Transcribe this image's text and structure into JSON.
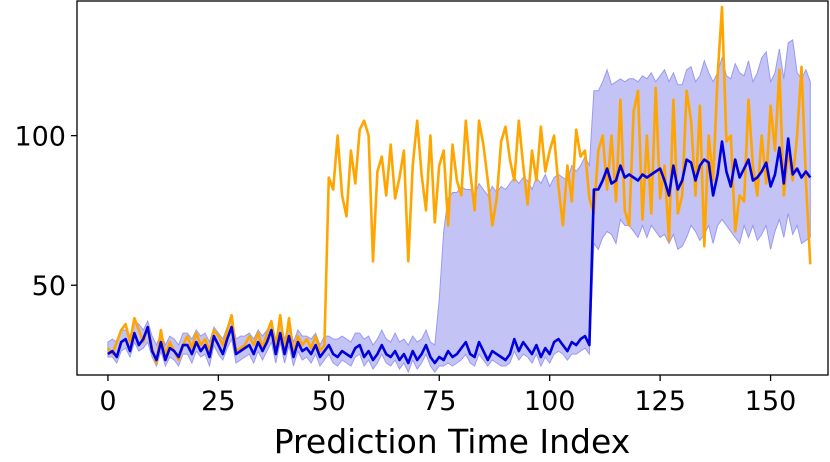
{
  "chart_data": {
    "type": "line",
    "title": "",
    "xlabel": "Prediction Time Index",
    "ylabel": "",
    "xlim": [
      -7,
      163
    ],
    "ylim": [
      20,
      145
    ],
    "xticks": [
      0,
      25,
      50,
      75,
      100,
      125,
      150
    ],
    "yticks": [
      50,
      100
    ],
    "grid": false,
    "legend": "none",
    "colors": {
      "actual": "#ffa500",
      "prediction": "#0000dd",
      "band_fill": "#b8b8f5",
      "band_edge": "#9a9aee"
    },
    "series": [
      {
        "role": "actual",
        "x": [
          0,
          1,
          2,
          3,
          4,
          5,
          6,
          7,
          8,
          9,
          10,
          11,
          12,
          13,
          14,
          15,
          16,
          17,
          18,
          19,
          20,
          21,
          22,
          23,
          24,
          25,
          26,
          27,
          28,
          29,
          30,
          31,
          32,
          33,
          34,
          35,
          36,
          37,
          38,
          39,
          40,
          41,
          42,
          43,
          44,
          45,
          46,
          47,
          48,
          49,
          50,
          51,
          52,
          53,
          54,
          55,
          56,
          57,
          58,
          59,
          60,
          61,
          62,
          63,
          64,
          65,
          66,
          67,
          68,
          69,
          70,
          71,
          72,
          73,
          74,
          75,
          76,
          77,
          78,
          79,
          80,
          81,
          82,
          83,
          84,
          85,
          86,
          87,
          88,
          89,
          90,
          91,
          92,
          93,
          94,
          95,
          96,
          97,
          98,
          99,
          100,
          101,
          102,
          103,
          104,
          105,
          106,
          107,
          108,
          109,
          110,
          111,
          112,
          113,
          114,
          115,
          116,
          117,
          118,
          119,
          120,
          121,
          122,
          123,
          124,
          125,
          126,
          127,
          128,
          129,
          130,
          131,
          132,
          133,
          134,
          135,
          136,
          137,
          138,
          139,
          140,
          141,
          142,
          143,
          144,
          145,
          146,
          147,
          148,
          149,
          150,
          151,
          152,
          153,
          154,
          155,
          156,
          157,
          158,
          159
        ],
        "y": [
          29,
          27,
          31,
          35,
          37,
          31,
          39,
          35,
          31,
          36,
          29,
          24,
          35,
          26,
          31,
          28,
          25,
          30,
          33,
          29,
          34,
          30,
          32,
          28,
          35,
          33,
          30,
          35,
          40,
          28,
          29,
          30,
          33,
          30,
          34,
          29,
          34,
          38,
          29,
          40,
          28,
          39,
          27,
          33,
          30,
          32,
          29,
          33,
          28,
          30,
          86,
          82,
          100,
          80,
          73,
          95,
          84,
          102,
          105,
          100,
          58,
          88,
          93,
          80,
          97,
          79,
          86,
          95,
          58,
          90,
          105,
          87,
          75,
          100,
          71,
          90,
          95,
          70,
          97,
          85,
          80,
          105,
          88,
          75,
          105,
          97,
          85,
          70,
          79,
          98,
          103,
          92,
          85,
          105,
          90,
          77,
          95,
          85,
          103,
          88,
          95,
          100,
          83,
          70,
          90,
          78,
          102,
          93,
          95,
          79,
          74,
          95,
          100,
          82,
          100,
          78,
          112,
          75,
          70,
          108,
          115,
          72,
          100,
          74,
          116,
          79,
          90,
          65,
          112,
          74,
          80,
          115,
          105,
          80,
          110,
          63,
          100,
          85,
          120,
          143,
          98,
          100,
          68,
          80,
          78,
          112,
          90,
          80,
          100,
          84,
          110,
          95,
          122,
          80,
          95,
          85,
          100,
          123,
          85,
          57
        ]
      },
      {
        "role": "prediction",
        "x": [
          0,
          1,
          2,
          3,
          4,
          5,
          6,
          7,
          8,
          9,
          10,
          11,
          12,
          13,
          14,
          15,
          16,
          17,
          18,
          19,
          20,
          21,
          22,
          23,
          24,
          25,
          26,
          27,
          28,
          29,
          30,
          31,
          32,
          33,
          34,
          35,
          36,
          37,
          38,
          39,
          40,
          41,
          42,
          43,
          44,
          45,
          46,
          47,
          48,
          49,
          50,
          51,
          52,
          53,
          54,
          55,
          56,
          57,
          58,
          59,
          60,
          61,
          62,
          63,
          64,
          65,
          66,
          67,
          68,
          69,
          70,
          71,
          72,
          73,
          74,
          75,
          76,
          77,
          78,
          79,
          80,
          81,
          82,
          83,
          84,
          85,
          86,
          87,
          88,
          89,
          90,
          91,
          92,
          93,
          94,
          95,
          96,
          97,
          98,
          99,
          100,
          101,
          102,
          103,
          104,
          105,
          106,
          107,
          108,
          109,
          110,
          111,
          112,
          113,
          114,
          115,
          116,
          117,
          118,
          119,
          120,
          121,
          122,
          123,
          124,
          125,
          126,
          127,
          128,
          129,
          130,
          131,
          132,
          133,
          134,
          135,
          136,
          137,
          138,
          139,
          140,
          141,
          142,
          143,
          144,
          145,
          146,
          147,
          148,
          149,
          150,
          151,
          152,
          153,
          154,
          155,
          156,
          157,
          158,
          159
        ],
        "y": [
          27,
          28,
          26,
          31,
          32,
          28,
          34,
          30,
          32,
          36,
          28,
          25,
          31,
          25,
          29,
          28,
          26,
          30,
          30,
          27,
          31,
          28,
          30,
          26,
          33,
          30,
          27,
          32,
          36,
          27,
          28,
          29,
          30,
          27,
          31,
          28,
          31,
          35,
          27,
          34,
          27,
          33,
          26,
          31,
          28,
          29,
          27,
          30,
          26,
          28,
          30,
          27,
          26,
          28,
          27,
          26,
          29,
          30,
          26,
          28,
          25,
          27,
          30,
          27,
          26,
          28,
          25,
          27,
          24,
          28,
          25,
          27,
          30,
          26,
          24,
          26,
          25,
          28,
          26,
          27,
          29,
          31,
          27,
          26,
          31,
          28,
          25,
          28,
          27,
          26,
          25,
          27,
          32,
          28,
          31,
          29,
          27,
          30,
          26,
          29,
          27,
          31,
          32,
          30,
          28,
          31,
          30,
          32,
          33,
          30,
          82,
          82,
          85,
          89,
          84,
          85,
          90,
          86,
          87,
          86,
          85,
          87,
          86,
          87,
          88,
          89,
          85,
          80,
          90,
          82,
          85,
          92,
          91,
          85,
          90,
          92,
          91,
          80,
          87,
          98,
          88,
          83,
          92,
          86,
          89,
          92,
          85,
          86,
          88,
          91,
          83,
          87,
          96,
          84,
          99,
          87,
          89,
          86,
          88,
          86
        ]
      }
    ],
    "band": {
      "x": [
        0,
        1,
        2,
        3,
        4,
        5,
        6,
        7,
        8,
        9,
        10,
        11,
        12,
        13,
        14,
        15,
        16,
        17,
        18,
        19,
        20,
        21,
        22,
        23,
        24,
        25,
        26,
        27,
        28,
        29,
        30,
        31,
        32,
        33,
        34,
        35,
        36,
        37,
        38,
        39,
        40,
        41,
        42,
        43,
        44,
        45,
        46,
        47,
        48,
        49,
        50,
        51,
        52,
        53,
        54,
        55,
        56,
        57,
        58,
        59,
        60,
        61,
        62,
        63,
        64,
        65,
        66,
        67,
        68,
        69,
        70,
        71,
        72,
        73,
        74,
        75,
        76,
        77,
        78,
        79,
        80,
        81,
        82,
        83,
        84,
        85,
        86,
        87,
        88,
        89,
        90,
        91,
        92,
        93,
        94,
        95,
        96,
        97,
        98,
        99,
        100,
        101,
        102,
        103,
        104,
        105,
        106,
        107,
        108,
        109,
        110,
        111,
        112,
        113,
        114,
        115,
        116,
        117,
        118,
        119,
        120,
        121,
        122,
        123,
        124,
        125,
        126,
        127,
        128,
        129,
        130,
        131,
        132,
        133,
        134,
        135,
        136,
        137,
        138,
        139,
        140,
        141,
        142,
        143,
        144,
        145,
        146,
        147,
        148,
        149,
        150,
        151,
        152,
        153,
        154,
        155,
        156,
        157,
        158,
        159
      ],
      "upper": [
        31,
        32,
        31,
        35,
        35,
        33,
        38,
        37,
        35,
        38,
        33,
        30,
        34,
        30,
        33,
        32,
        30,
        34,
        34,
        32,
        35,
        33,
        34,
        31,
        36,
        34,
        32,
        36,
        39,
        32,
        33,
        33,
        34,
        32,
        35,
        33,
        35,
        38,
        32,
        38,
        32,
        37,
        31,
        35,
        33,
        33,
        32,
        34,
        30,
        33,
        33,
        32,
        32,
        33,
        32,
        31,
        34,
        34,
        32,
        33,
        30,
        32,
        35,
        32,
        31,
        34,
        31,
        32,
        30,
        33,
        31,
        32,
        35,
        31,
        30,
        45,
        68,
        79,
        81,
        81,
        83,
        82,
        82,
        80,
        84,
        82,
        80,
        83,
        81,
        83,
        82,
        84,
        86,
        84,
        86,
        85,
        82,
        86,
        84,
        87,
        83,
        86,
        87,
        86,
        85,
        90,
        88,
        90,
        93,
        90,
        115,
        115,
        118,
        122,
        117,
        118,
        119,
        118,
        119,
        119,
        118,
        120,
        119,
        121,
        118,
        120,
        122,
        118,
        121,
        117,
        117,
        122,
        123,
        118,
        120,
        125,
        121,
        118,
        121,
        126,
        120,
        119,
        124,
        121,
        120,
        125,
        118,
        121,
        126,
        128,
        118,
        121,
        129,
        119,
        131,
        132,
        121,
        119,
        122,
        118
      ],
      "lower": [
        26,
        26,
        24,
        28,
        29,
        26,
        31,
        28,
        29,
        31,
        26,
        23,
        28,
        23,
        26,
        25,
        23,
        27,
        27,
        24,
        28,
        26,
        27,
        23,
        30,
        27,
        25,
        29,
        32,
        24,
        25,
        26,
        27,
        24,
        28,
        25,
        28,
        31,
        24,
        31,
        24,
        30,
        23,
        28,
        25,
        26,
        24,
        27,
        23,
        25,
        27,
        24,
        23,
        25,
        24,
        23,
        26,
        27,
        23,
        25,
        22,
        24,
        27,
        24,
        23,
        25,
        22,
        24,
        21,
        25,
        22,
        24,
        27,
        23,
        21,
        23,
        23,
        24,
        23,
        24,
        25,
        27,
        24,
        23,
        27,
        25,
        23,
        25,
        24,
        23,
        23,
        24,
        28,
        25,
        27,
        26,
        24,
        27,
        23,
        26,
        24,
        27,
        28,
        27,
        25,
        27,
        27,
        28,
        29,
        27,
        64,
        62,
        66,
        68,
        67,
        64,
        72,
        70,
        70,
        68,
        66,
        70,
        66,
        70,
        68,
        66,
        67,
        64,
        67,
        62,
        63,
        66,
        70,
        68,
        65,
        67,
        70,
        64,
        70,
        72,
        70,
        68,
        66,
        64,
        70,
        66,
        70,
        65,
        67,
        70,
        62,
        68,
        72,
        66,
        74,
        67,
        70,
        64,
        65,
        66
      ]
    }
  }
}
